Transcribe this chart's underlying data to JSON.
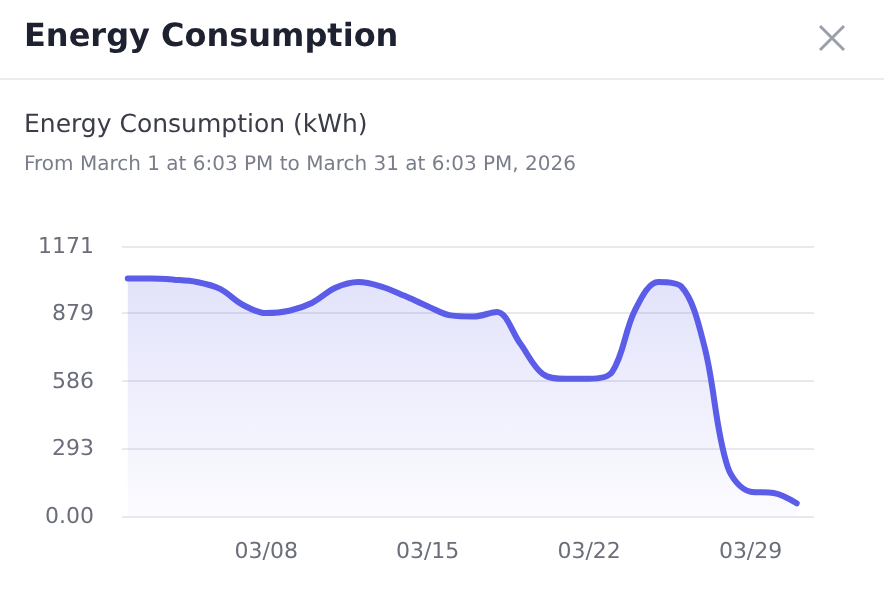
{
  "chart_data": {
    "type": "area",
    "title": "Energy Consumption",
    "subtitle": "Energy Consumption (kWh)",
    "annotations": [
      "From March 1 at 6:03 PM to March 31 at 6:03 PM, 2026"
    ],
    "x": [
      "--03-02",
      "--03-03",
      "--03-04",
      "--03-05",
      "--03-06",
      "--03-07",
      "--03-08",
      "--03-09",
      "--03-10",
      "--03-11",
      "--03-12",
      "--03-13",
      "--03-14",
      "--03-15",
      "--03-16",
      "--03-17",
      "--03-18",
      "--03-19",
      "--03-20",
      "--03-21",
      "--03-22",
      "--03-23",
      "--03-24",
      "--03-25",
      "--03-26",
      "--03-27",
      "--03-28",
      "--03-29",
      "--03-30",
      "--03-31"
    ],
    "series": [
      {
        "color": "#5b5ce8",
        "values": [
          1030,
          1030,
          1025,
          1015,
          985,
          915,
          880,
          890,
          925,
          990,
          1015,
          995,
          955,
          910,
          870,
          865,
          885,
          750,
          615,
          595,
          595,
          625,
          895,
          1015,
          995,
          735,
          215,
          105,
          100,
          55
        ]
      }
    ],
    "xlim": [
      "--03-01T18:00",
      "--03-31T18:00"
    ],
    "xticks": [
      {
        "value": "--03-08",
        "label": "03/08"
      },
      {
        "value": "--03-15",
        "label": "03/15"
      },
      {
        "value": "--03-22",
        "label": "03/22"
      },
      {
        "value": "--03-29",
        "label": "03/29"
      }
    ],
    "ylim": [
      0,
      1171
    ],
    "yticks": [
      {
        "value": 0,
        "label": "0.00"
      },
      293,
      586,
      879,
      1171
    ],
    "grid": "y"
  }
}
